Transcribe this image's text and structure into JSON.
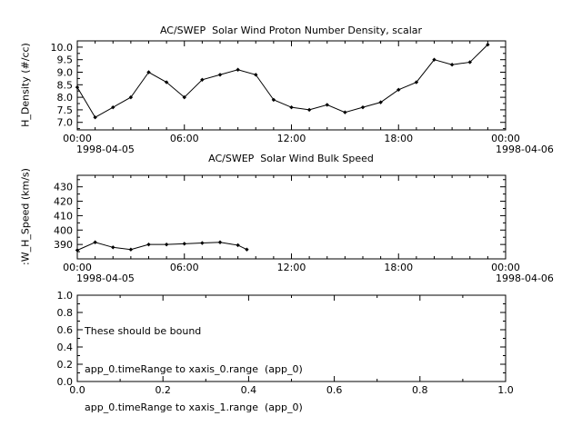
{
  "window": {
    "background": "#ffffff",
    "foreground": "#000000"
  },
  "chart_data": [
    {
      "type": "line",
      "title": "AC/SWEP  Solar Wind Proton Number Density, scalar",
      "ylabel": "H_Density (#/cc)",
      "x_start_date": "1998-04-05",
      "x_end_date": "1998-04-06",
      "xticks": [
        0,
        6,
        12,
        18,
        24
      ],
      "xtick_labels": [
        "00:00",
        "06:00",
        "12:00",
        "18:00",
        "00:00"
      ],
      "x_minor_step": 1,
      "yticks": [
        7.0,
        7.5,
        8.0,
        8.5,
        9.0,
        9.5,
        10.0
      ],
      "ytick_labels": [
        "7.0",
        "7.5",
        "8.0",
        "8.5",
        "9.0",
        "9.5",
        "10.0"
      ],
      "y_minor_step": 0.25,
      "xlim": [
        0,
        24
      ],
      "ylim": [
        6.7,
        10.25
      ],
      "grid": false,
      "x": [
        0,
        1,
        2,
        3,
        4,
        5,
        6,
        7,
        8,
        9,
        10,
        11,
        12,
        13,
        14,
        15,
        16,
        17,
        18,
        19,
        20,
        21,
        22,
        23
      ],
      "y": [
        8.4,
        7.2,
        7.6,
        8.0,
        9.0,
        8.6,
        8.0,
        8.7,
        8.9,
        9.1,
        8.9,
        7.9,
        7.6,
        7.5,
        7.7,
        7.4,
        7.6,
        7.8,
        8.3,
        8.6,
        9.5,
        9.3,
        9.4,
        10.1
      ]
    },
    {
      "type": "line",
      "title": "AC/SWEP  Solar Wind Bulk Speed",
      "ylabel": ":W_H_Speed (km/s)",
      "x_start_date": "1998-04-05",
      "x_end_date": "1998-04-06",
      "xticks": [
        0,
        6,
        12,
        18,
        24
      ],
      "xtick_labels": [
        "00:00",
        "06:00",
        "12:00",
        "18:00",
        "00:00"
      ],
      "x_minor_step": 1,
      "yticks": [
        390,
        400,
        410,
        420,
        430
      ],
      "ytick_labels": [
        "390",
        "400",
        "410",
        "420",
        "430"
      ],
      "y_minor_step": 5,
      "xlim": [
        0,
        24
      ],
      "ylim": [
        380,
        438
      ],
      "grid": false,
      "x": [
        0,
        1,
        2,
        3,
        4,
        5,
        6,
        7,
        8,
        9,
        9.5
      ],
      "y": [
        386,
        391.5,
        388,
        386.5,
        390,
        390,
        390.5,
        391,
        391.5,
        389.5,
        386.5
      ]
    },
    {
      "type": "empty",
      "title": "",
      "annotation": [
        "These should be bound",
        "app_0.timeRange to xaxis_0.range  (app_0)",
        "app_0.timeRange to xaxis_1.range  (app_0)"
      ],
      "xticks": [
        0,
        0.2,
        0.4,
        0.6,
        0.8,
        1.0
      ],
      "xtick_labels": [
        "0.0",
        "0.2",
        "0.4",
        "0.6",
        "0.8",
        "1.0"
      ],
      "x_minor_step": 0.1,
      "yticks": [
        0,
        0.2,
        0.4,
        0.6,
        0.8,
        1.0
      ],
      "ytick_labels": [
        "0.0",
        "0.2",
        "0.4",
        "0.6",
        "0.8",
        "1.0"
      ],
      "y_minor_step": 0.1,
      "xlim": [
        0,
        1
      ],
      "ylim": [
        0,
        1
      ],
      "grid": false
    }
  ]
}
